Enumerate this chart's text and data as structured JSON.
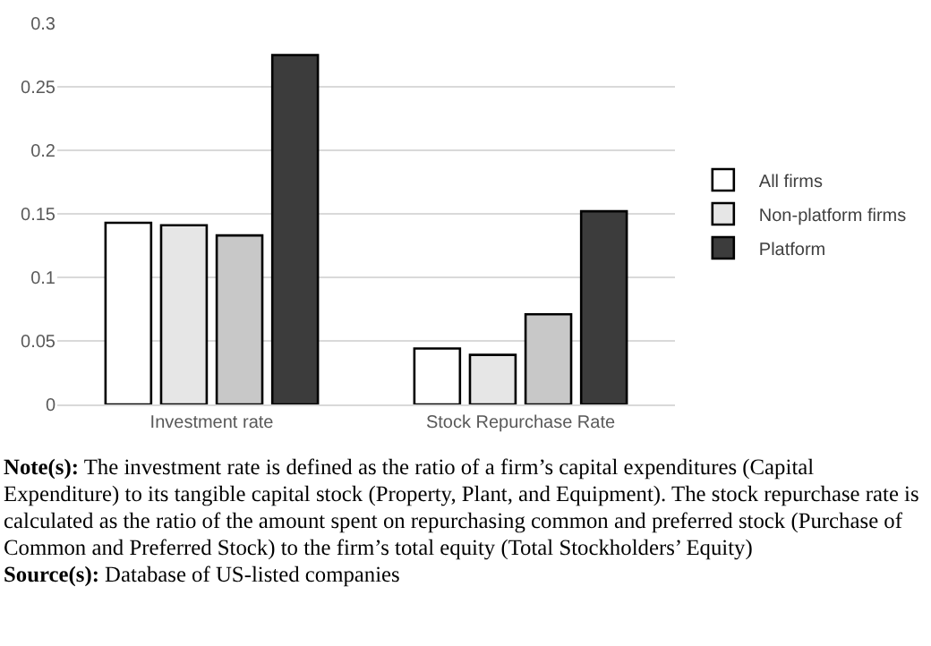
{
  "chart_data": {
    "type": "bar",
    "categories": [
      "Investment rate",
      "Stock Repurchase Rate"
    ],
    "series": [
      {
        "name": "All firms",
        "color": "#ffffff",
        "values": [
          0.143,
          0.044
        ]
      },
      {
        "name": "Non-platform firms",
        "color": "#e6e6e6",
        "values": [
          0.141,
          0.039
        ]
      },
      {
        "color": "#c8c8c8",
        "values": [
          0.133,
          0.071
        ]
      },
      {
        "name": "Platform",
        "color": "#3c3c3c",
        "values": [
          0.275,
          0.152
        ]
      }
    ],
    "ylim": [
      0,
      0.3
    ],
    "yticks": [
      0,
      0.05,
      0.1,
      0.15,
      0.2,
      0.25,
      0.3
    ],
    "grid": "y",
    "legend": "right",
    "annotations": [
      "Note(s): The investment rate is defined as the ratio of a firm’s capital expenditures (Capital Expenditure) to its tangible capital stock (Property, Plant, and Equipment). The stock repurchase rate is calculated as the ratio of the amount spent on repurchasing common and preferred stock (Purchase of Common and Preferred Stock) to the firm’s total equity (Total Stockholders’ Equity)",
      "Source(s): Database of US-listed companies"
    ]
  }
}
